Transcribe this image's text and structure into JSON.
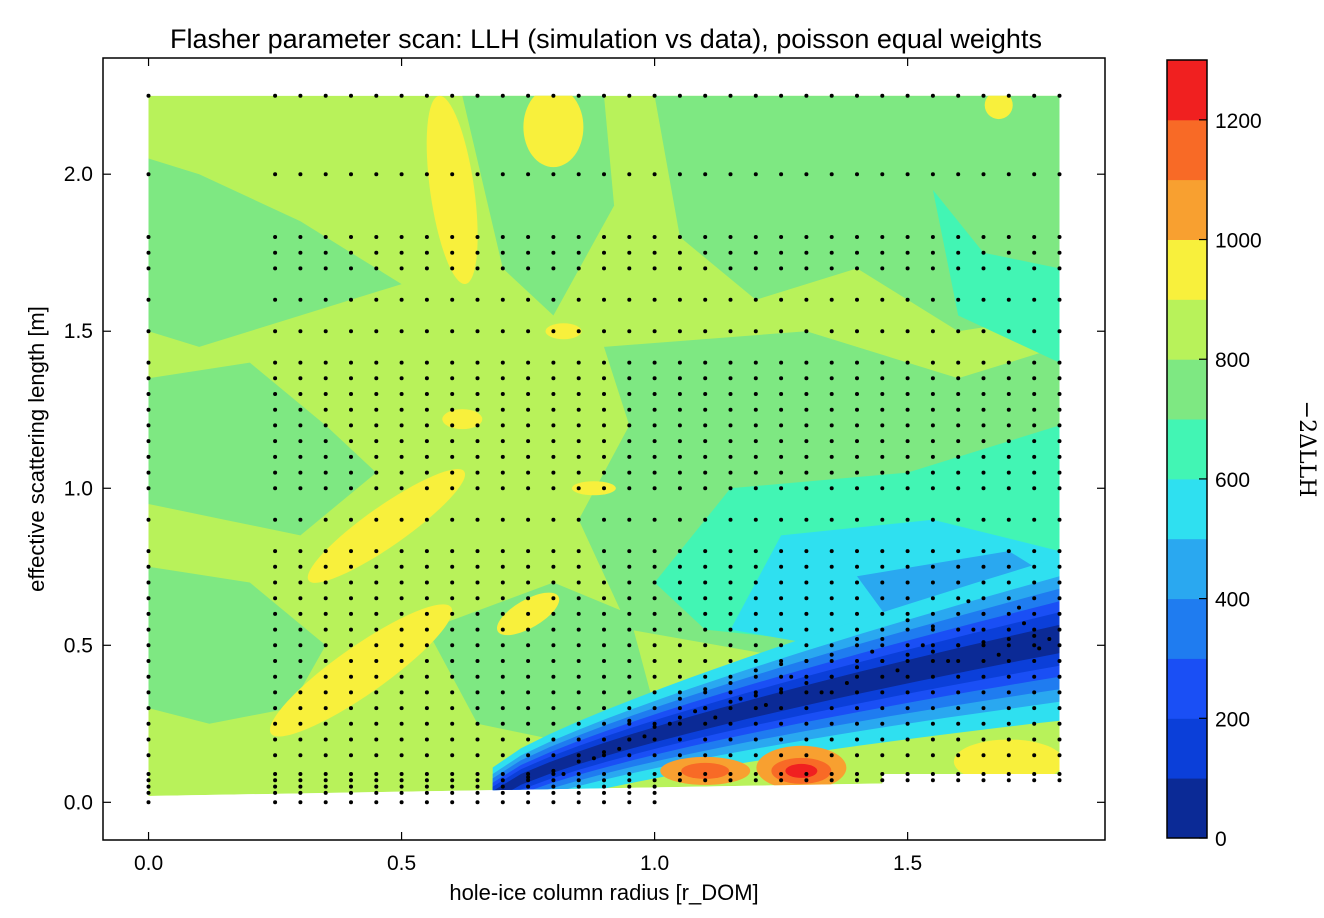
{
  "chart_data": {
    "type": "heatmap",
    "title": "Flasher parameter scan: LLH (simulation vs data), poisson equal weights",
    "xlabel": "hole-ice column radius [r_DOM]",
    "ylabel": "effective scattering length [m]",
    "xlim": [
      -0.09,
      1.89
    ],
    "ylim": [
      -0.12,
      2.37
    ],
    "xticks": [
      "0.0",
      "0.5",
      "1.0",
      "1.5"
    ],
    "yticks": [
      "0.0",
      "0.5",
      "1.0",
      "1.5",
      "2.0"
    ],
    "colorbar": {
      "label": "−2ΔLLH",
      "range": [
        0,
        1300
      ],
      "ticks": [
        "0",
        "200",
        "400",
        "600",
        "800",
        "1000",
        "1200"
      ],
      "levels": [
        0,
        100,
        200,
        300,
        400,
        500,
        600,
        700,
        800,
        900,
        1000,
        1100,
        1200,
        1300
      ],
      "colors": [
        "#0b2a96",
        "#0b3fd9",
        "#1a4ff5",
        "#1f7cf0",
        "#2aa8f0",
        "#2fe0f0",
        "#42f5b4",
        "#7ee882",
        "#b8f25a",
        "#f8f03c",
        "#f8a030",
        "#f86a26",
        "#f02020",
        "#a00f12"
      ]
    },
    "grid_x": [
      0.0,
      0.25,
      0.3,
      0.35,
      0.4,
      0.45,
      0.5,
      0.55,
      0.6,
      0.65,
      0.7,
      0.75,
      0.8,
      0.85,
      0.9,
      0.95,
      1.0,
      1.05,
      1.1,
      1.15,
      1.2,
      1.25,
      1.3,
      1.35,
      1.4,
      1.45,
      1.5,
      1.55,
      1.6,
      1.65,
      1.7,
      1.75,
      1.8
    ],
    "grid_y": [
      0.0,
      0.03,
      0.05,
      0.07,
      0.09,
      0.15,
      0.2,
      0.25,
      0.3,
      0.35,
      0.4,
      0.45,
      0.5,
      0.55,
      0.6,
      0.65,
      0.7,
      0.75,
      0.8,
      0.9,
      1.0,
      1.05,
      1.1,
      1.15,
      1.2,
      1.25,
      1.3,
      1.35,
      1.4,
      1.5,
      1.6,
      1.7,
      1.75,
      1.8,
      2.0,
      2.25
    ],
    "valley_points": [
      [
        0.75,
        0.08
      ],
      [
        0.8,
        0.1
      ],
      [
        0.85,
        0.13
      ],
      [
        0.9,
        0.16
      ],
      [
        0.95,
        0.2
      ],
      [
        1.0,
        0.24
      ],
      [
        1.05,
        0.27
      ],
      [
        1.1,
        0.3
      ],
      [
        1.15,
        0.32
      ],
      [
        1.2,
        0.34
      ],
      [
        1.25,
        0.36
      ],
      [
        1.3,
        0.38
      ],
      [
        1.35,
        0.4
      ],
      [
        1.4,
        0.43
      ],
      [
        1.45,
        0.45
      ],
      [
        1.5,
        0.47
      ],
      [
        1.55,
        0.48
      ],
      [
        1.6,
        0.5
      ],
      [
        1.65,
        0.51
      ],
      [
        1.7,
        0.52
      ],
      [
        1.75,
        0.53
      ],
      [
        1.78,
        0.52
      ],
      [
        0.82,
        0.09
      ],
      [
        0.88,
        0.14
      ],
      [
        0.93,
        0.17
      ],
      [
        0.98,
        0.21
      ],
      [
        1.03,
        0.25
      ],
      [
        1.08,
        0.29
      ],
      [
        1.12,
        0.27
      ],
      [
        1.17,
        0.33
      ],
      [
        1.22,
        0.31
      ],
      [
        1.27,
        0.4
      ],
      [
        1.33,
        0.35
      ],
      [
        1.38,
        0.38
      ],
      [
        1.43,
        0.48
      ],
      [
        1.48,
        0.42
      ],
      [
        1.53,
        0.5
      ],
      [
        1.58,
        0.45
      ],
      [
        1.63,
        0.55
      ],
      [
        1.68,
        0.47
      ],
      [
        1.73,
        0.57
      ],
      [
        1.76,
        0.49
      ],
      [
        0.95,
        0.26
      ],
      [
        1.05,
        0.33
      ],
      [
        1.15,
        0.38
      ],
      [
        1.25,
        0.44
      ],
      [
        1.35,
        0.47
      ],
      [
        1.45,
        0.52
      ],
      [
        1.55,
        0.56
      ],
      [
        1.65,
        0.6
      ],
      [
        1.72,
        0.62
      ],
      [
        1.62,
        0.64
      ],
      [
        1.5,
        0.58
      ],
      [
        1.4,
        0.52
      ],
      [
        1.3,
        0.45
      ],
      [
        1.2,
        0.42
      ],
      [
        1.1,
        0.36
      ]
    ]
  }
}
